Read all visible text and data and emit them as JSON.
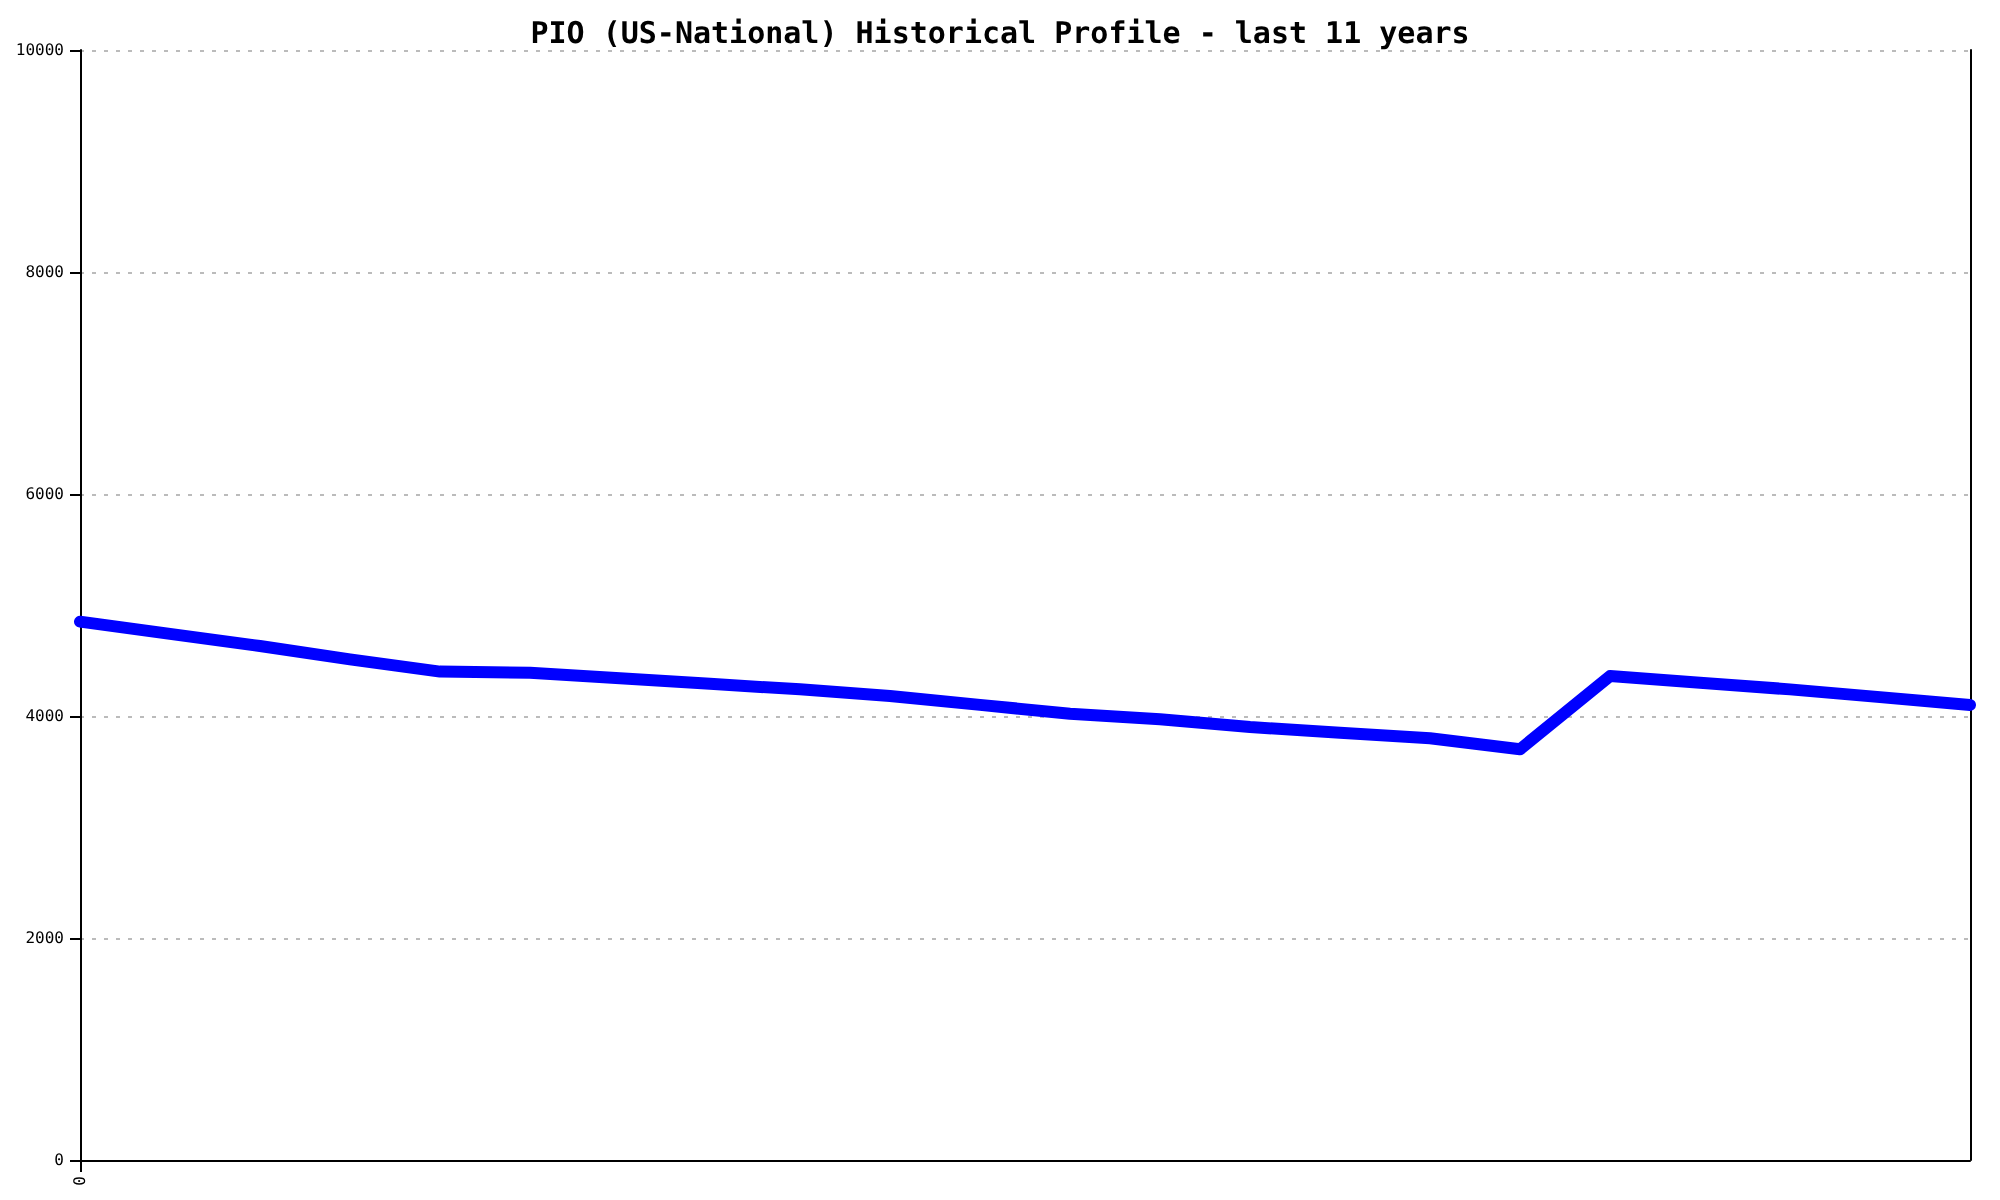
{
  "chart_data": {
    "type": "line",
    "title": "PIO (US-National) Historical Profile - last 11 years",
    "categories": [
      "0",
      null,
      null,
      null,
      null,
      null,
      null,
      null,
      null,
      null,
      null,
      null,
      null,
      null,
      null,
      null,
      null,
      null,
      null,
      null,
      null,
      null
    ],
    "series": [
      {
        "color": "#0000ff",
        "values": [
          4850,
          4740,
          4630,
          4510,
          4400,
          4390,
          4340,
          4290,
          4240,
          4180,
          4100,
          4020,
          3970,
          3900,
          3850,
          3800,
          3700,
          4360,
          4300,
          4240,
          4170,
          4100
        ]
      }
    ],
    "ylim": [
      0,
      10000
    ],
    "yticks": [
      0,
      2000,
      4000,
      6000,
      8000,
      10000
    ],
    "grid": "y",
    "marker": "none",
    "line_style": "solid"
  }
}
